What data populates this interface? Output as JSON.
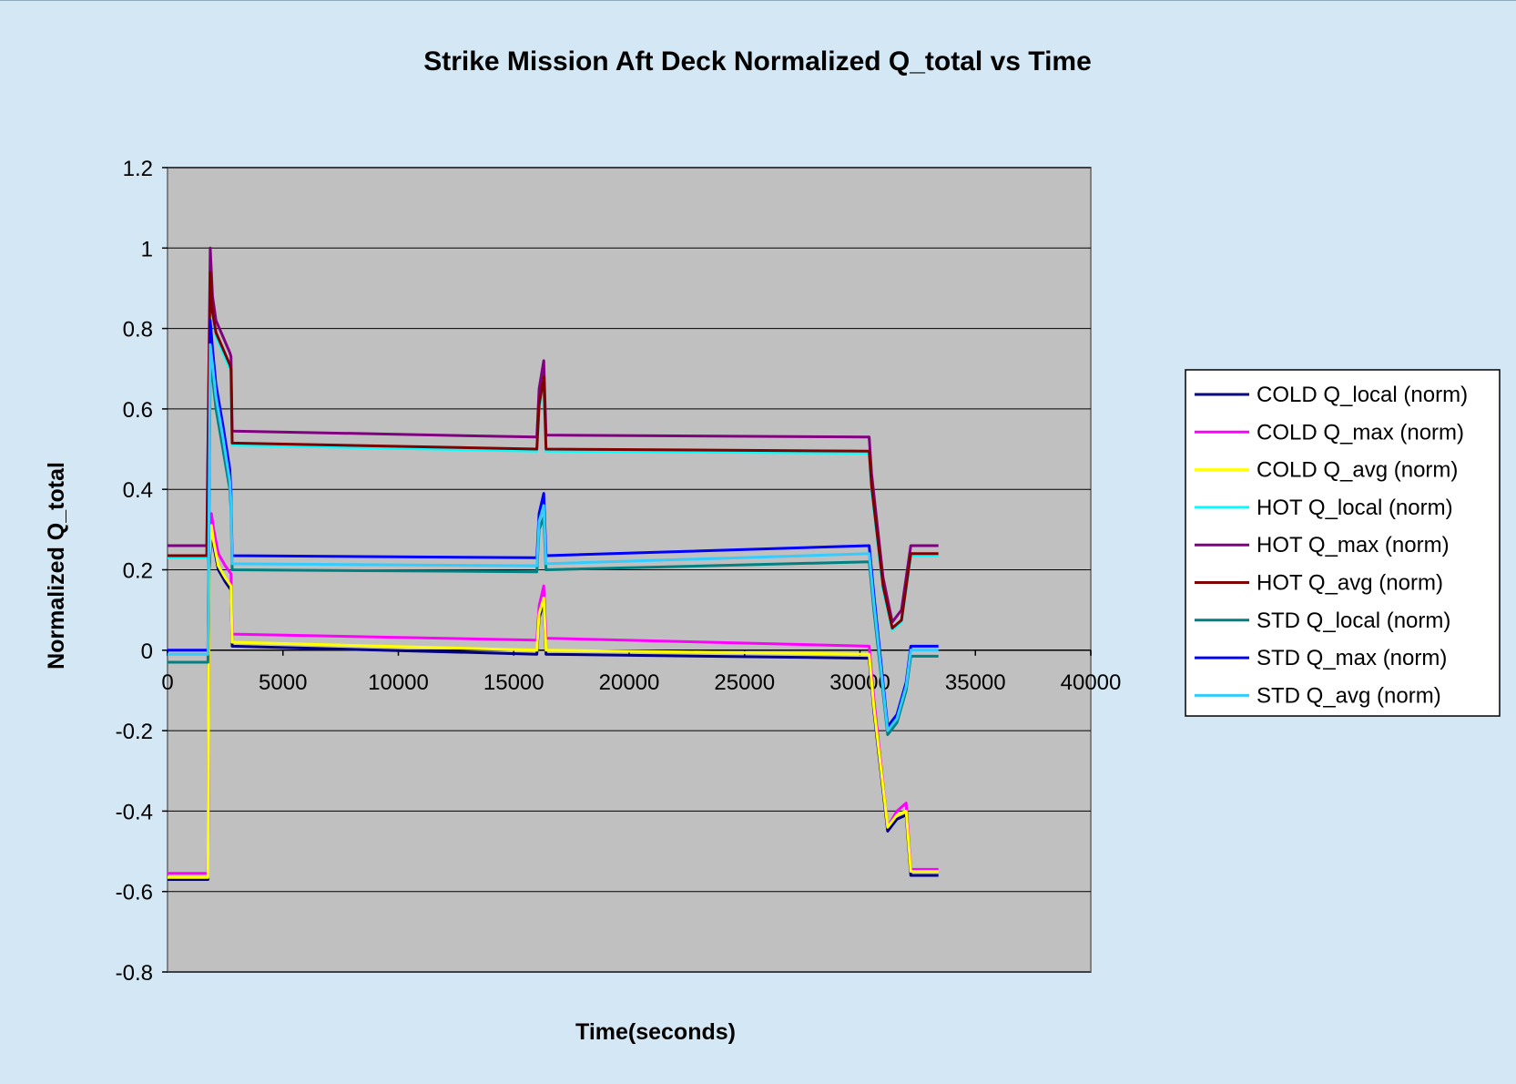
{
  "chart_data": {
    "type": "line",
    "title": "Strike Mission Aft Deck Normalized Q_total vs Time",
    "xlabel": "Time(seconds)",
    "ylabel": "Normalized Q_total",
    "xlim": [
      0,
      40000
    ],
    "ylim": [
      -0.8,
      1.2
    ],
    "xticks": [
      0,
      5000,
      10000,
      15000,
      20000,
      25000,
      30000,
      35000,
      40000
    ],
    "yticks": [
      1.2,
      1,
      0.8,
      0.6,
      0.4,
      0.2,
      0,
      -0.2,
      -0.4,
      -0.6,
      -0.8
    ],
    "ytick_labels": [
      "1.2",
      "1",
      "0.8",
      "0.6",
      "0.4",
      "0.2",
      "0",
      "-0.2",
      "-0.4",
      "-0.6",
      "-0.8"
    ],
    "grid": "horizontal",
    "legend_position": "right",
    "colors": {
      "background": "#d3e7f5",
      "plot_area": "#c0c0c0"
    },
    "series": [
      {
        "name": "COLD Q_local (norm)",
        "color": "#000080",
        "x": [
          0,
          1750,
          1800,
          1900,
          2000,
          2200,
          2500,
          2750,
          2800,
          16000,
          16100,
          16300,
          16400,
          30400,
          30600,
          31200,
          31600,
          32000,
          32200,
          33400
        ],
        "y": [
          -0.57,
          -0.57,
          0.2,
          0.3,
          0.26,
          0.2,
          0.17,
          0.15,
          0.01,
          -0.01,
          0.08,
          0.12,
          -0.01,
          -0.02,
          -0.15,
          -0.45,
          -0.42,
          -0.41,
          -0.56,
          -0.56
        ]
      },
      {
        "name": "COLD Q_max (norm)",
        "color": "#ff00ff",
        "x": [
          0,
          1750,
          1800,
          1900,
          2000,
          2200,
          2500,
          2750,
          2800,
          16000,
          16100,
          16300,
          16400,
          30400,
          30600,
          31200,
          31600,
          32000,
          32200,
          33400
        ],
        "y": [
          -0.555,
          -0.555,
          0.25,
          0.34,
          0.3,
          0.24,
          0.21,
          0.19,
          0.04,
          0.025,
          0.11,
          0.16,
          0.03,
          0.01,
          -0.12,
          -0.44,
          -0.4,
          -0.38,
          -0.545,
          -0.545
        ]
      },
      {
        "name": "COLD Q_avg (norm)",
        "color": "#ffff00",
        "x": [
          0,
          1750,
          1800,
          1900,
          2000,
          2200,
          2500,
          2750,
          2800,
          16000,
          16100,
          16300,
          16400,
          30400,
          30600,
          31200,
          31600,
          32000,
          32200,
          33400
        ],
        "y": [
          -0.565,
          -0.565,
          0.22,
          0.31,
          0.27,
          0.21,
          0.18,
          0.16,
          0.02,
          0.0,
          0.09,
          0.13,
          0.0,
          -0.01,
          -0.14,
          -0.44,
          -0.41,
          -0.4,
          -0.55,
          -0.55
        ]
      },
      {
        "name": "HOT Q_local (norm)",
        "color": "#00ffff",
        "x": [
          0,
          1700,
          1850,
          1950,
          2100,
          2400,
          2700,
          2750,
          2800,
          16000,
          16100,
          16300,
          16400,
          30400,
          30500,
          31000,
          31400,
          31800,
          32200,
          33400
        ],
        "y": [
          0.23,
          0.23,
          0.95,
          0.85,
          0.78,
          0.74,
          0.7,
          0.69,
          0.51,
          0.495,
          0.6,
          0.67,
          0.495,
          0.49,
          0.4,
          0.15,
          0.05,
          0.07,
          0.235,
          0.235
        ]
      },
      {
        "name": "HOT Q_max (norm)",
        "color": "#800080",
        "x": [
          0,
          1700,
          1850,
          1950,
          2100,
          2400,
          2700,
          2750,
          2800,
          16000,
          16100,
          16300,
          16400,
          30400,
          30500,
          31000,
          31400,
          31800,
          32200,
          33400
        ],
        "y": [
          0.26,
          0.26,
          1.0,
          0.88,
          0.82,
          0.78,
          0.74,
          0.73,
          0.545,
          0.53,
          0.65,
          0.72,
          0.535,
          0.53,
          0.44,
          0.18,
          0.07,
          0.1,
          0.26,
          0.26
        ]
      },
      {
        "name": "HOT Q_avg (norm)",
        "color": "#800000",
        "x": [
          0,
          1700,
          1850,
          1950,
          2100,
          2400,
          2700,
          2750,
          2800,
          16000,
          16100,
          16300,
          16400,
          30400,
          30500,
          31000,
          31400,
          31800,
          32200,
          33400
        ],
        "y": [
          0.235,
          0.235,
          0.94,
          0.84,
          0.79,
          0.75,
          0.71,
          0.7,
          0.515,
          0.5,
          0.61,
          0.68,
          0.5,
          0.495,
          0.41,
          0.16,
          0.055,
          0.075,
          0.24,
          0.24
        ]
      },
      {
        "name": "STD Q_local (norm)",
        "color": "#008080",
        "x": [
          0,
          1750,
          1850,
          1950,
          2100,
          2400,
          2700,
          2750,
          2800,
          16000,
          16100,
          16300,
          16400,
          30400,
          30600,
          31200,
          31600,
          32000,
          32200,
          33400
        ],
        "y": [
          -0.03,
          -0.03,
          0.7,
          0.68,
          0.6,
          0.5,
          0.4,
          0.35,
          0.2,
          0.195,
          0.3,
          0.33,
          0.2,
          0.22,
          0.1,
          -0.21,
          -0.18,
          -0.1,
          -0.015,
          -0.015
        ]
      },
      {
        "name": "STD Q_max (norm)",
        "color": "#0000ff",
        "x": [
          0,
          1750,
          1850,
          1950,
          2100,
          2400,
          2700,
          2750,
          2800,
          16000,
          16100,
          16300,
          16400,
          30400,
          30600,
          31200,
          31600,
          32000,
          32200,
          33400
        ],
        "y": [
          0.0,
          0.0,
          0.82,
          0.75,
          0.66,
          0.56,
          0.45,
          0.39,
          0.235,
          0.23,
          0.34,
          0.39,
          0.235,
          0.26,
          0.14,
          -0.19,
          -0.16,
          -0.08,
          0.01,
          0.01
        ]
      },
      {
        "name": "STD Q_avg (norm)",
        "color": "#33ccff",
        "x": [
          0,
          1750,
          1850,
          1950,
          2100,
          2400,
          2700,
          2750,
          2800,
          16000,
          16100,
          16300,
          16400,
          30400,
          30600,
          31200,
          31600,
          32000,
          32200,
          33400
        ],
        "y": [
          -0.01,
          -0.01,
          0.76,
          0.71,
          0.63,
          0.53,
          0.42,
          0.37,
          0.215,
          0.21,
          0.32,
          0.36,
          0.215,
          0.24,
          0.12,
          -0.2,
          -0.17,
          -0.09,
          0.0,
          0.0
        ]
      }
    ]
  }
}
